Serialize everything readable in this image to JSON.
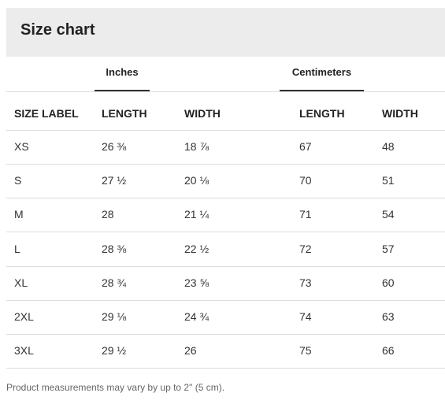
{
  "header": {
    "title": "Size chart"
  },
  "tabs": [
    "Inches",
    "Centimeters"
  ],
  "table": {
    "columns": [
      "SIZE LABEL",
      "LENGTH",
      "WIDTH",
      "LENGTH",
      "WIDTH"
    ],
    "rows": [
      [
        "XS",
        "26 ⅜",
        "18 ⅞",
        "67",
        "48"
      ],
      [
        "S",
        "27 ½",
        "20 ⅛",
        "70",
        "51"
      ],
      [
        "M",
        "28",
        "21 ¼",
        "71",
        "54"
      ],
      [
        "L",
        "28 ⅜",
        "22 ½",
        "72",
        "57"
      ],
      [
        "XL",
        "28 ¾",
        "23 ⅝",
        "73",
        "60"
      ],
      [
        "2XL",
        "29 ⅛",
        "24 ¾",
        "74",
        "63"
      ],
      [
        "3XL",
        "29 ½",
        "26",
        "75",
        "66"
      ]
    ]
  },
  "footnote": "Product measurements may vary by up to 2\" (5 cm)."
}
